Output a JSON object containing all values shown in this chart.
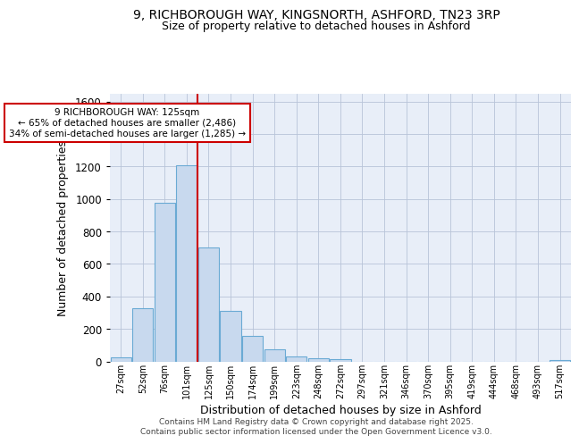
{
  "title1": "9, RICHBOROUGH WAY, KINGSNORTH, ASHFORD, TN23 3RP",
  "title2": "Size of property relative to detached houses in Ashford",
  "xlabel": "Distribution of detached houses by size in Ashford",
  "ylabel": "Number of detached properties",
  "categories": [
    "27sqm",
    "52sqm",
    "76sqm",
    "101sqm",
    "125sqm",
    "150sqm",
    "174sqm",
    "199sqm",
    "223sqm",
    "248sqm",
    "272sqm",
    "297sqm",
    "321sqm",
    "346sqm",
    "370sqm",
    "395sqm",
    "419sqm",
    "444sqm",
    "468sqm",
    "493sqm",
    "517sqm"
  ],
  "values": [
    25,
    325,
    975,
    1210,
    700,
    310,
    155,
    75,
    30,
    20,
    12,
    0,
    0,
    0,
    0,
    0,
    0,
    0,
    0,
    0,
    10
  ],
  "bar_color": "#c8d9ee",
  "bar_edge_color": "#6aaad4",
  "vline_x": 3.5,
  "vline_color": "#cc0000",
  "annotation_title": "9 RICHBOROUGH WAY: 125sqm",
  "annotation_line1": "← 65% of detached houses are smaller (2,486)",
  "annotation_line2": "34% of semi-detached houses are larger (1,285) →",
  "annotation_box_edgecolor": "#cc0000",
  "ylim": [
    0,
    1650
  ],
  "yticks": [
    0,
    200,
    400,
    600,
    800,
    1000,
    1200,
    1400,
    1600
  ],
  "bg_color": "#e8eef8",
  "footer1": "Contains HM Land Registry data © Crown copyright and database right 2025.",
  "footer2": "Contains public sector information licensed under the Open Government Licence v3.0."
}
